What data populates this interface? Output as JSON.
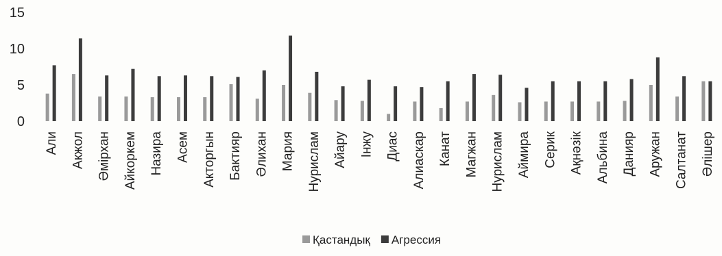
{
  "chart_data": {
    "type": "bar",
    "title": "",
    "xlabel": "",
    "ylabel": "",
    "ylim": [
      0,
      15
    ],
    "yticks": [
      0,
      5,
      10,
      15
    ],
    "grid": false,
    "legend_position": "bottom",
    "categories": [
      "Али",
      "Акжол",
      "Әмірхан",
      "Айкоркем",
      "Назира",
      "Асем",
      "Акторгын",
      "Бактияр",
      "Әлихан",
      "Мария",
      "Нурислам",
      "Айару",
      "Інжу",
      "Диас",
      "Алиаскар",
      "Канат",
      "Магжан",
      "Нурислам",
      "Аймира",
      "Серик",
      "Ақнәзік",
      "Альбина",
      "Данияр",
      "Аружан",
      "Салтанат",
      "Әлішер"
    ],
    "series": [
      {
        "name": "Қастандық",
        "color": "#9a9a9a",
        "values": [
          3.8,
          6.5,
          3.4,
          3.4,
          3.3,
          3.3,
          3.3,
          5.1,
          3.1,
          5.0,
          3.9,
          2.9,
          2.8,
          1.0,
          2.7,
          1.8,
          2.7,
          3.6,
          2.6,
          2.7,
          2.7,
          2.7,
          2.8,
          5.0,
          3.4,
          5.5
        ]
      },
      {
        "name": "Агрессия",
        "color": "#3c3c3c",
        "values": [
          7.7,
          11.4,
          6.3,
          7.2,
          6.2,
          6.3,
          6.2,
          6.1,
          7.0,
          11.8,
          6.8,
          4.8,
          5.7,
          4.8,
          4.7,
          5.5,
          6.5,
          6.4,
          4.6,
          5.5,
          5.5,
          5.5,
          5.8,
          8.8,
          6.2,
          5.5
        ]
      }
    ]
  }
}
